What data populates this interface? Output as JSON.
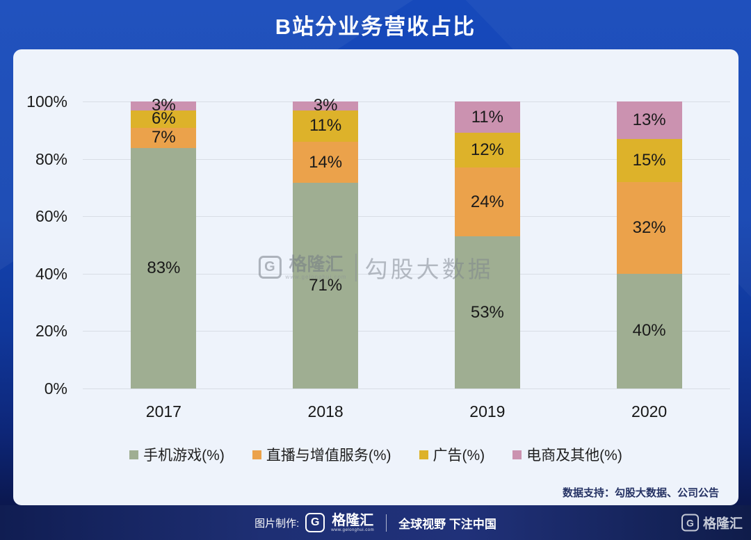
{
  "title": "B站分业务营收占比",
  "chart_data": {
    "type": "bar",
    "stacked": true,
    "normalized_to_100": true,
    "categories": [
      "2017",
      "2018",
      "2019",
      "2020"
    ],
    "series": [
      {
        "name": "手机游戏(%)",
        "color": "#9fae92",
        "values": [
          83,
          71,
          53,
          40
        ]
      },
      {
        "name": "直播与增值服务(%)",
        "color": "#eba24b",
        "values": [
          7,
          14,
          24,
          32
        ]
      },
      {
        "name": "广告(%)",
        "color": "#ddb22a",
        "values": [
          6,
          11,
          12,
          15
        ]
      },
      {
        "name": "电商及其他(%)",
        "color": "#cb92b0",
        "values": [
          3,
          3,
          11,
          13
        ]
      }
    ],
    "title": "B站分业务营收占比",
    "xlabel": "",
    "ylabel": "",
    "ylim": [
      0,
      100
    ],
    "yticks": [
      "0%",
      "20%",
      "40%",
      "60%",
      "80%",
      "100%"
    ],
    "grid": true,
    "legend_position": "bottom"
  },
  "watermark": {
    "brand": "格隆汇",
    "url": "www.gelonghui.com",
    "text": "勾股大数据"
  },
  "source_note": "数据支持：勾股大数据、公司公告",
  "footer": {
    "made_by_label": "图片制作:",
    "brand": "格隆汇",
    "brand_url": "www.gelonghui.com",
    "slogan": "全球视野 下注中国",
    "right_brand": "格隆汇"
  }
}
